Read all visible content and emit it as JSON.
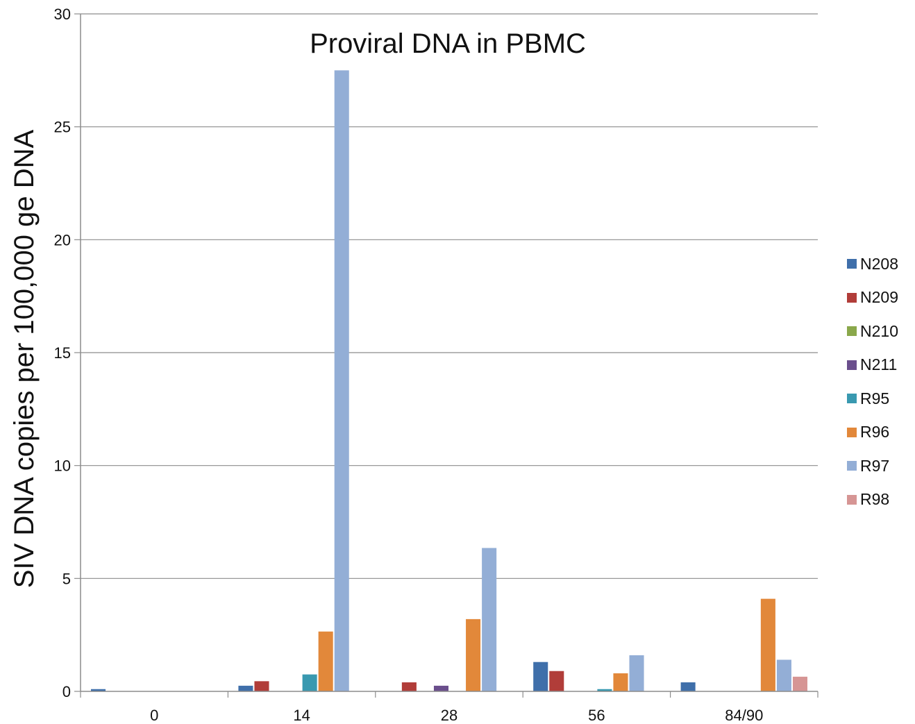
{
  "chart_data": {
    "type": "bar",
    "title": "Proviral DNA in PBMC",
    "xlabel": "",
    "ylabel": "SIV DNA copies per 100,000 ge DNA",
    "ylim": [
      0,
      30
    ],
    "yticks": [
      0,
      5,
      10,
      15,
      20,
      25,
      30
    ],
    "categories": [
      "0",
      "14",
      "28",
      "56",
      "84/90"
    ],
    "grid": true,
    "legend_position": "right",
    "series": [
      {
        "name": "N208",
        "color": "#3f6faa",
        "values": [
          0.1,
          0.25,
          0,
          1.3,
          0.4
        ]
      },
      {
        "name": "N209",
        "color": "#b13d39",
        "values": [
          0,
          0.45,
          0.4,
          0.9,
          0
        ]
      },
      {
        "name": "N210",
        "color": "#8aa84b",
        "values": [
          0,
          0,
          0,
          0,
          0
        ]
      },
      {
        "name": "N211",
        "color": "#6a4e8c",
        "values": [
          0,
          0,
          0.25,
          0,
          0
        ]
      },
      {
        "name": "R95",
        "color": "#3999b0",
        "values": [
          0,
          0.75,
          0,
          0.1,
          0
        ]
      },
      {
        "name": "R96",
        "color": "#e2883a",
        "values": [
          0,
          2.65,
          3.2,
          0.8,
          4.1
        ]
      },
      {
        "name": "R97",
        "color": "#93aed6",
        "values": [
          0,
          27.5,
          6.35,
          1.6,
          1.4
        ]
      },
      {
        "name": "R98",
        "color": "#d69594",
        "values": [
          0,
          0,
          0,
          0,
          0.65
        ]
      }
    ]
  }
}
